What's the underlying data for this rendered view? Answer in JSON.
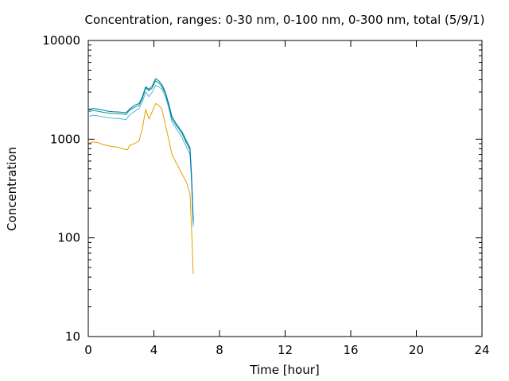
{
  "chart_data": {
    "type": "line",
    "title": "Concentration, ranges: 0-30 nm, 0-100 nm, 0-300 nm, total (5/9/1)",
    "xlabel": "Time [hour]",
    "ylabel": "Concentration",
    "xlim": [
      0,
      24
    ],
    "ylim": [
      10,
      10000
    ],
    "yscale": "log",
    "grid": false,
    "legend": "none",
    "xticks": [
      0,
      4,
      8,
      12,
      16,
      20,
      24
    ],
    "yticks": [
      10,
      100,
      1000,
      10000
    ],
    "ytick_labels": [
      "10",
      "100",
      "1000",
      "10000"
    ],
    "series": [
      {
        "color": "#e69f00",
        "x": [
          0,
          0.3,
          0.6,
          0.9,
          1.2,
          1.5,
          1.8,
          2.1,
          2.4,
          2.5,
          2.8,
          3.1,
          3.3,
          3.5,
          3.7,
          3.9,
          4.1,
          4.3,
          4.5,
          4.7,
          4.9,
          5.1,
          5.4,
          5.7,
          6.0,
          6.2,
          6.3,
          6.4
        ],
        "y": [
          900,
          940,
          920,
          880,
          860,
          840,
          830,
          800,
          780,
          860,
          900,
          960,
          1300,
          2000,
          1600,
          1900,
          2300,
          2200,
          2000,
          1400,
          1000,
          700,
          560,
          450,
          360,
          280,
          120,
          43
        ]
      },
      {
        "color": "#56b4e9",
        "x": [
          0,
          0.3,
          0.6,
          0.9,
          1.2,
          1.5,
          1.8,
          2.1,
          2.3,
          2.5,
          2.8,
          3.1,
          3.3,
          3.5,
          3.7,
          3.9,
          4.1,
          4.3,
          4.5,
          4.7,
          4.9,
          5.1,
          5.4,
          5.7,
          6.0,
          6.2,
          6.3,
          6.4
        ],
        "y": [
          1700,
          1750,
          1720,
          1680,
          1650,
          1630,
          1620,
          1600,
          1580,
          1750,
          1900,
          2050,
          2400,
          3000,
          2700,
          3000,
          3500,
          3400,
          3200,
          2700,
          2100,
          1500,
          1250,
          1050,
          820,
          700,
          350,
          130
        ]
      },
      {
        "color": "#009e73",
        "x": [
          0,
          0.3,
          0.6,
          0.9,
          1.2,
          1.5,
          1.8,
          2.1,
          2.3,
          2.5,
          2.8,
          3.1,
          3.3,
          3.5,
          3.7,
          3.9,
          4.1,
          4.3,
          4.5,
          4.7,
          4.9,
          5.1,
          5.4,
          5.7,
          6.0,
          6.2,
          6.3,
          6.4
        ],
        "y": [
          1900,
          1950,
          1920,
          1870,
          1840,
          1820,
          1810,
          1800,
          1780,
          1950,
          2100,
          2200,
          2600,
          3300,
          3100,
          3300,
          3900,
          3700,
          3400,
          2900,
          2200,
          1600,
          1350,
          1150,
          900,
          780,
          400,
          140
        ]
      },
      {
        "color": "#0072b2",
        "x": [
          0,
          0.3,
          0.6,
          0.9,
          1.2,
          1.5,
          1.8,
          2.1,
          2.3,
          2.5,
          2.8,
          3.1,
          3.3,
          3.5,
          3.7,
          3.9,
          4.1,
          4.3,
          4.5,
          4.7,
          4.9,
          5.1,
          5.4,
          5.7,
          6.0,
          6.2,
          6.3,
          6.4
        ],
        "y": [
          2000,
          2050,
          2020,
          1970,
          1920,
          1900,
          1890,
          1870,
          1850,
          2000,
          2200,
          2300,
          2700,
          3400,
          3200,
          3450,
          4100,
          3900,
          3550,
          3000,
          2300,
          1700,
          1400,
          1200,
          950,
          820,
          420,
          150
        ]
      }
    ]
  }
}
